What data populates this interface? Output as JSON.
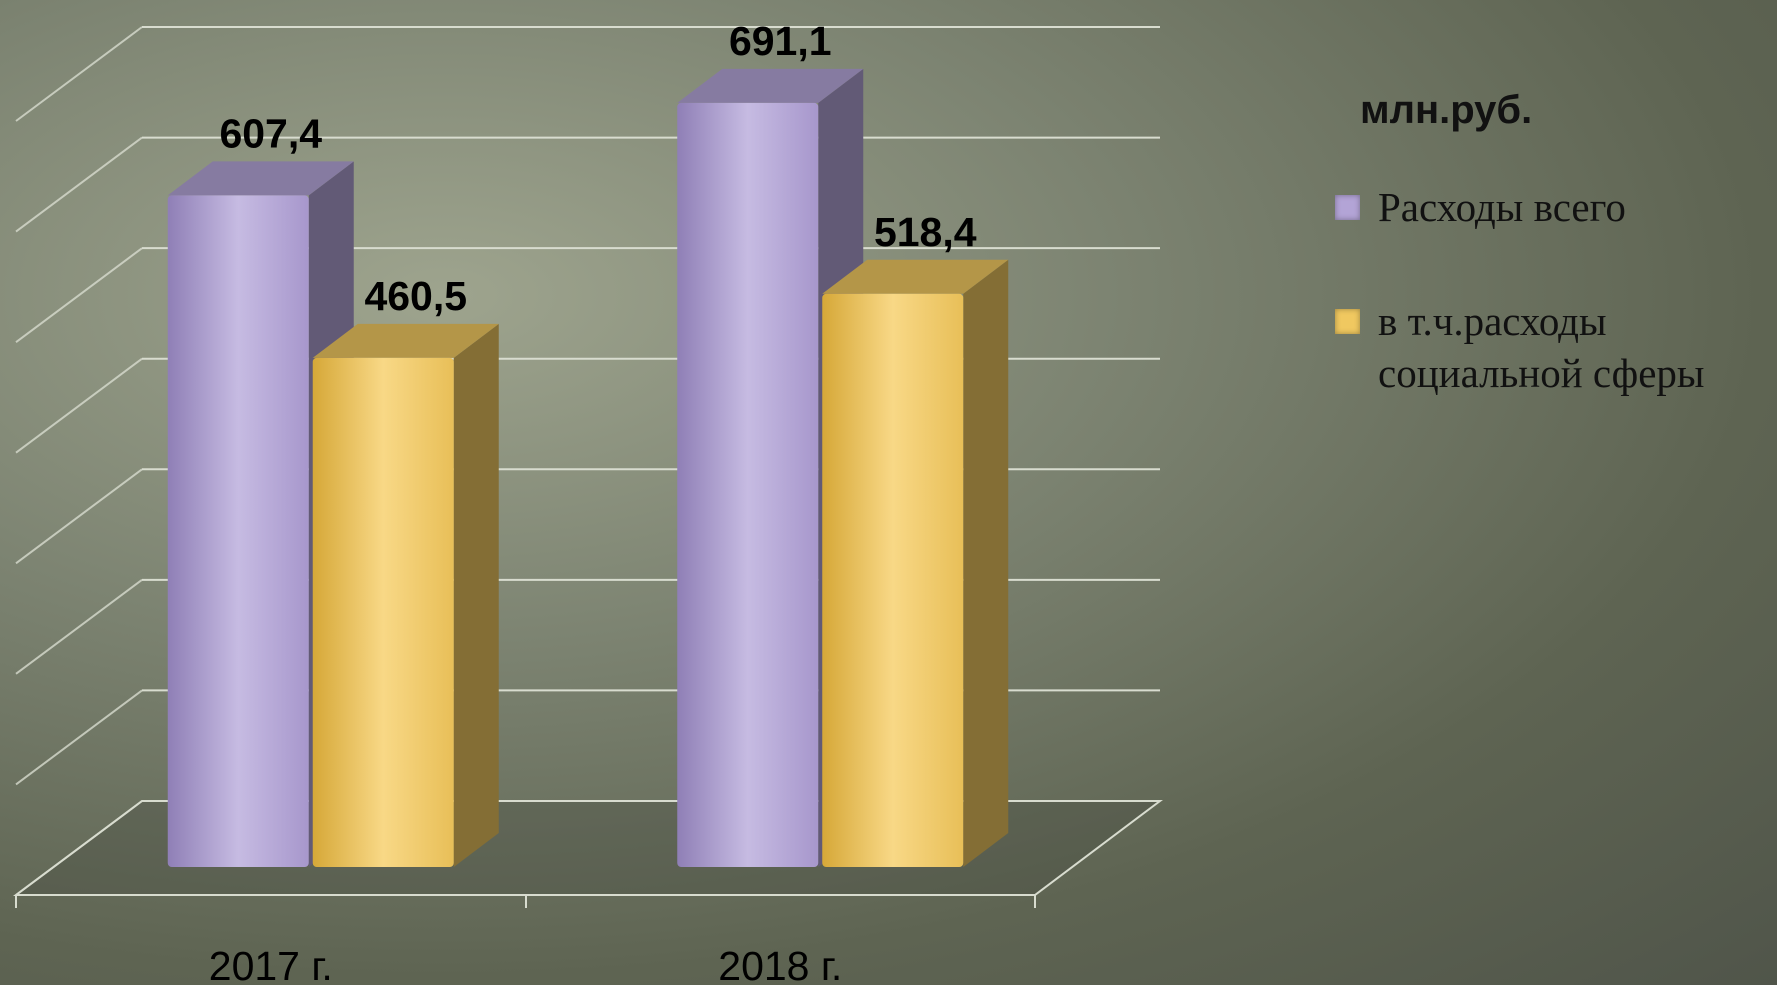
{
  "chart_data": {
    "type": "bar3d",
    "unit_label": "млн.руб.",
    "categories": [
      "2017 г.",
      "2018 г."
    ],
    "series": [
      {
        "name": "Расходы всего",
        "color": "#b3a4d6",
        "values": [
          607.4,
          691.1
        ],
        "value_labels": [
          "607,4",
          "691,1"
        ]
      },
      {
        "name": "в т.ч.расходы социальной сферы",
        "color": "#f0c860",
        "values": [
          460.5,
          518.4
        ],
        "value_labels": [
          "460,5",
          "518,4"
        ]
      }
    ],
    "ylim": [
      0,
      700
    ],
    "yticks": [
      0,
      100,
      200,
      300,
      400,
      500,
      600,
      700
    ],
    "grid": true
  }
}
